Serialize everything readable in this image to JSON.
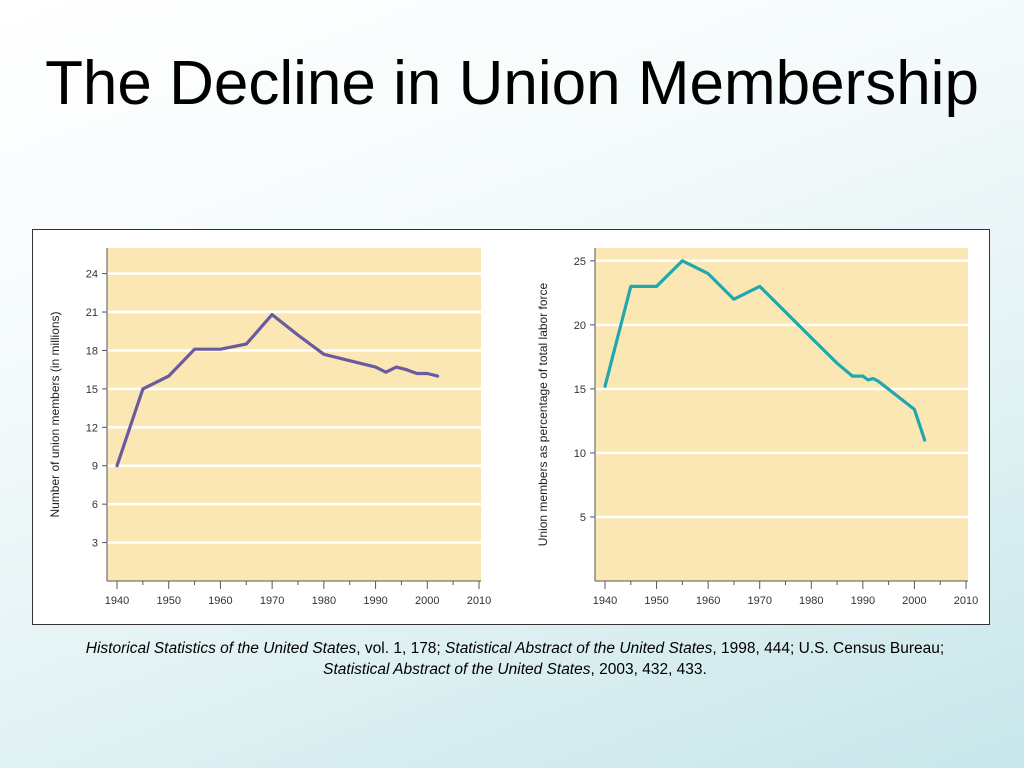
{
  "slide": {
    "title": "The Decline in Union Membership"
  },
  "source": {
    "parts": [
      {
        "text": "Historical Statistics of the United States",
        "italic": true
      },
      {
        "text": ", vol. 1, 178; ",
        "italic": false
      },
      {
        "text": "Statistical Abstract of the United States",
        "italic": true
      },
      {
        "text": ", 1998, 444; U.S. Census Bureau; ",
        "italic": false
      },
      {
        "text": "Statistical Abstract of the United States",
        "italic": true
      },
      {
        "text": ", 2003, 432, 433.",
        "italic": false
      }
    ]
  },
  "colors": {
    "plot_background": "#fbe7b3",
    "gridline": "#ffffff",
    "series_left": "#6a5aa0",
    "series_right": "#1fa8ad"
  },
  "chart_data": [
    {
      "type": "line",
      "title": "",
      "xlabel": "",
      "ylabel": "Number of union members (in millions)",
      "xlim": [
        1940,
        2010
      ],
      "ylim": [
        0,
        26
      ],
      "xticks": [
        1940,
        1950,
        1960,
        1970,
        1980,
        1990,
        2000,
        2010
      ],
      "yticks": [
        3,
        6,
        9,
        12,
        15,
        18,
        21,
        24
      ],
      "grid": true,
      "series": [
        {
          "x": [
            1940,
            1945,
            1950,
            1955,
            1960,
            1965,
            1970,
            1975,
            1980,
            1985,
            1990,
            1992,
            1994,
            1996,
            1998,
            2000,
            2002
          ],
          "values": [
            9.0,
            15.0,
            16.0,
            18.1,
            18.1,
            18.5,
            20.8,
            19.2,
            17.7,
            17.2,
            16.7,
            16.3,
            16.7,
            16.5,
            16.2,
            16.2,
            16.0
          ]
        }
      ]
    },
    {
      "type": "line",
      "title": "",
      "xlabel": "",
      "ylabel": "Union members as percentage of total labor force",
      "xlim": [
        1940,
        2010
      ],
      "ylim": [
        0,
        26
      ],
      "xticks": [
        1940,
        1950,
        1960,
        1970,
        1980,
        1990,
        2000,
        2010
      ],
      "yticks": [
        5,
        10,
        15,
        20,
        25
      ],
      "grid": true,
      "series": [
        {
          "x": [
            1940,
            1945,
            1950,
            1955,
            1960,
            1965,
            1970,
            1975,
            1980,
            1985,
            1988,
            1990,
            1991,
            1992,
            1993,
            2000,
            2002
          ],
          "values": [
            15.2,
            23.0,
            23.0,
            25.0,
            24.0,
            22.0,
            23.0,
            21.0,
            19.0,
            17.0,
            16.0,
            16.0,
            15.7,
            15.8,
            15.6,
            13.4,
            11.0
          ]
        }
      ]
    }
  ]
}
